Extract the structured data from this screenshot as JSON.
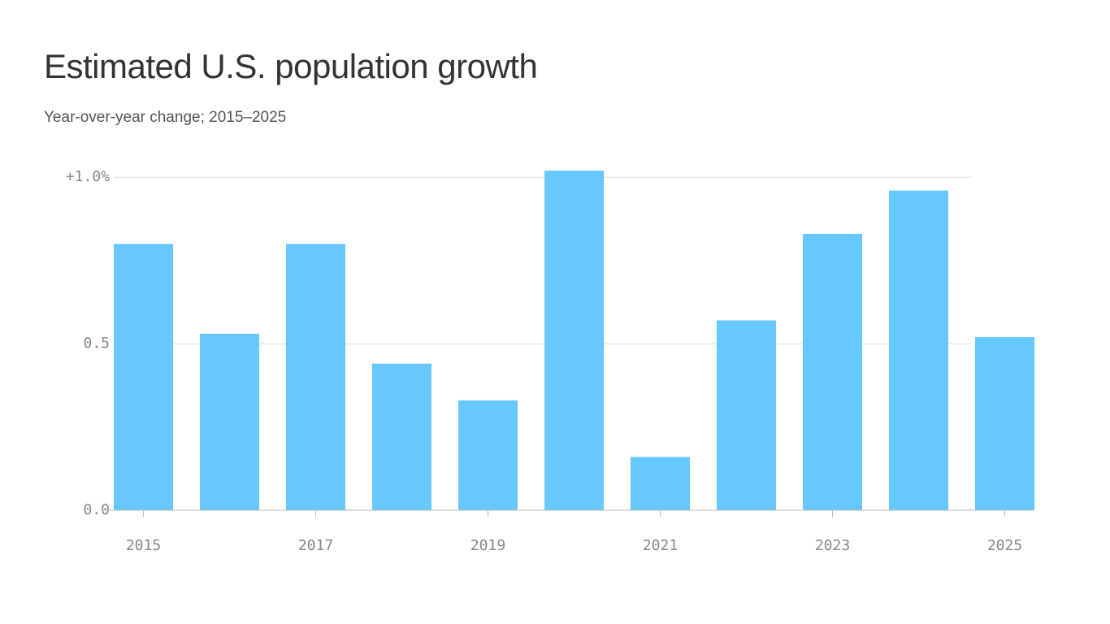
{
  "chart_data": {
    "type": "bar",
    "title": "Estimated U.S. population growth",
    "subtitle": "Year-over-year change; 2015–2025",
    "categories": [
      "2015",
      null,
      "2017",
      null,
      "2019",
      null,
      "2021",
      null,
      "2023",
      null,
      "2025"
    ],
    "values": [
      0.8,
      0.53,
      0.8,
      0.44,
      0.33,
      1.02,
      0.16,
      0.57,
      0.83,
      0.96,
      0.52
    ],
    "color": "#66c8fc",
    "ylim": [
      0,
      1.02
    ],
    "yticks": [
      {
        "value": 0,
        "label": "0.0"
      },
      {
        "value": 0.5,
        "label": "0.5"
      },
      {
        "value": 1,
        "label": "+1.0%"
      }
    ],
    "grid": true
  }
}
